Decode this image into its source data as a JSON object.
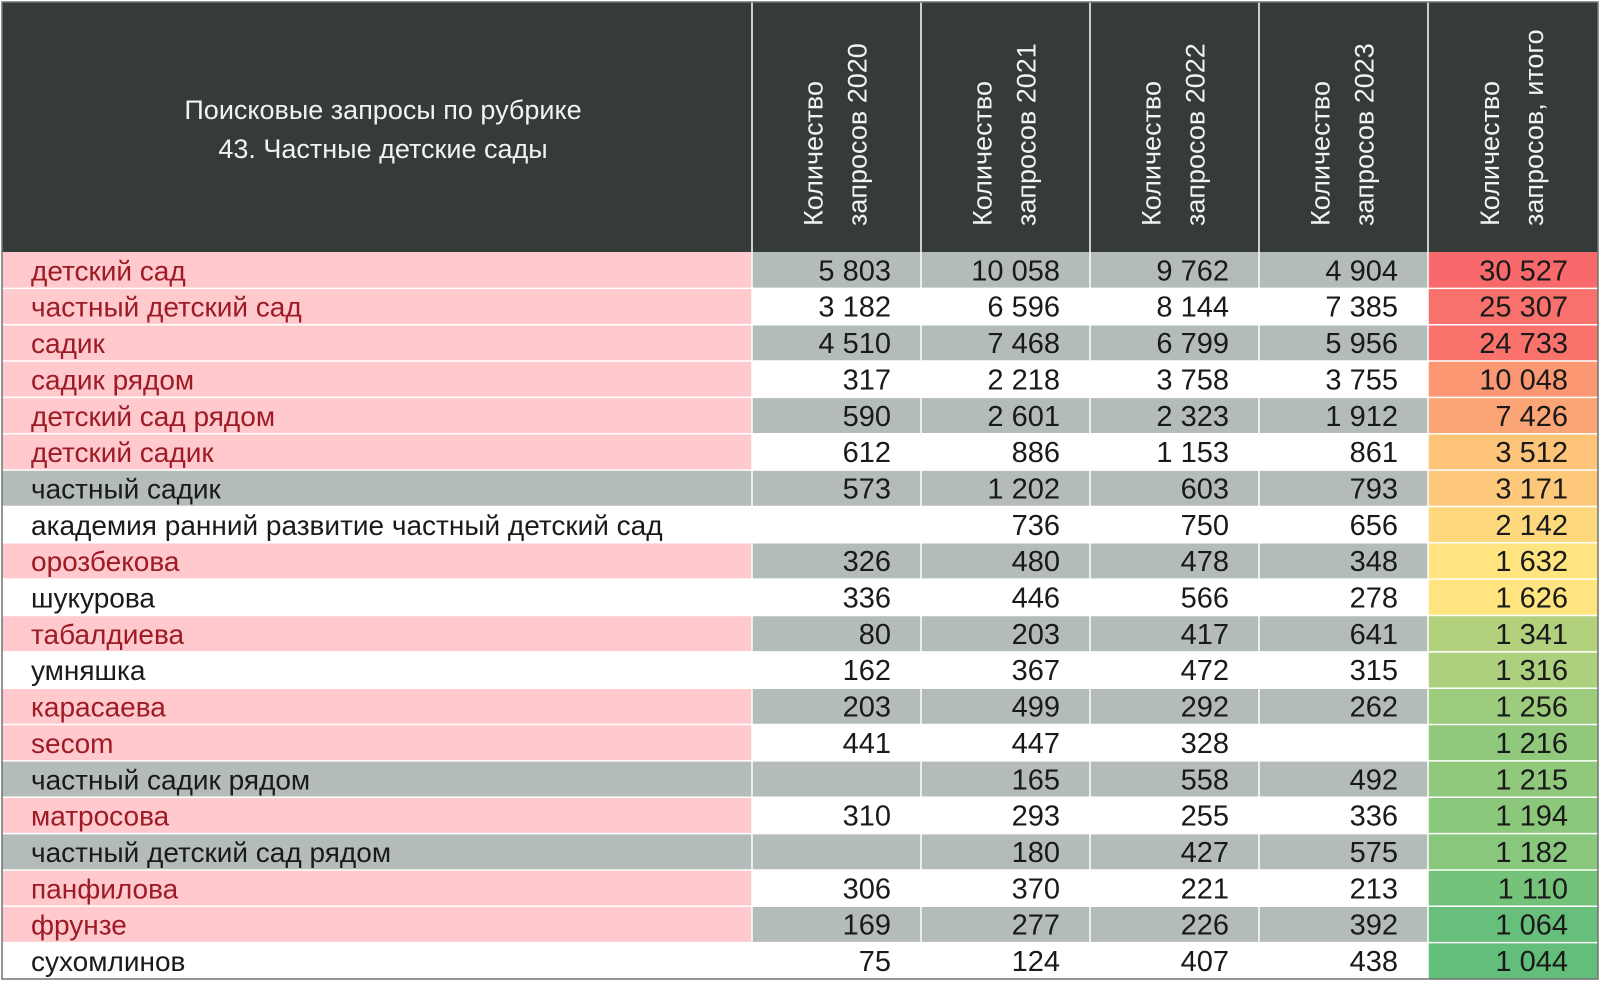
{
  "chart_data": {
    "type": "table",
    "title_lines": [
      "Поисковые запросы по рубрике",
      "43. Частные детские сады"
    ],
    "columns": [
      {
        "lines": [
          "Количество",
          "запросов 2020"
        ]
      },
      {
        "lines": [
          "Количество",
          "запросов 2021"
        ]
      },
      {
        "lines": [
          "Количество",
          "запросов 2022"
        ]
      },
      {
        "lines": [
          "Количество",
          "запросов 2023"
        ]
      },
      {
        "lines": [
          "Количество",
          "запросов, итого"
        ]
      }
    ],
    "rows": [
      {
        "label": "детский сад",
        "highlight": true,
        "values": [
          "5 803",
          "10 058",
          "9 762",
          "4 904",
          "30 527"
        ],
        "total": 30527
      },
      {
        "label": "частный детский сад",
        "highlight": true,
        "values": [
          "3 182",
          "6 596",
          "8 144",
          "7 385",
          "25 307"
        ],
        "total": 25307
      },
      {
        "label": "садик",
        "highlight": true,
        "values": [
          "4 510",
          "7 468",
          "6 799",
          "5 956",
          "24 733"
        ],
        "total": 24733
      },
      {
        "label": "садик рядом",
        "highlight": true,
        "values": [
          "317",
          "2 218",
          "3 758",
          "3 755",
          "10 048"
        ],
        "total": 10048
      },
      {
        "label": "детский сад рядом",
        "highlight": true,
        "values": [
          "590",
          "2 601",
          "2 323",
          "1 912",
          "7 426"
        ],
        "total": 7426
      },
      {
        "label": "детский садик",
        "highlight": true,
        "values": [
          "612",
          "886",
          "1 153",
          "861",
          "3 512"
        ],
        "total": 3512
      },
      {
        "label": "частный садик",
        "highlight": false,
        "values": [
          "573",
          "1 202",
          "603",
          "793",
          "3 171"
        ],
        "total": 3171
      },
      {
        "label": "академия ранний развитие частный детский сад",
        "highlight": false,
        "values": [
          "",
          "736",
          "750",
          "656",
          "2 142"
        ],
        "total": 2142
      },
      {
        "label": "орозбекова",
        "highlight": true,
        "values": [
          "326",
          "480",
          "478",
          "348",
          "1 632"
        ],
        "total": 1632
      },
      {
        "label": "шукурова",
        "highlight": false,
        "values": [
          "336",
          "446",
          "566",
          "278",
          "1 626"
        ],
        "total": 1626
      },
      {
        "label": "табалдиева",
        "highlight": true,
        "values": [
          "80",
          "203",
          "417",
          "641",
          "1 341"
        ],
        "total": 1341
      },
      {
        "label": "умняшка",
        "highlight": false,
        "values": [
          "162",
          "367",
          "472",
          "315",
          "1 316"
        ],
        "total": 1316
      },
      {
        "label": "карасаева",
        "highlight": true,
        "values": [
          "203",
          "499",
          "292",
          "262",
          "1 256"
        ],
        "total": 1256
      },
      {
        "label": "secom",
        "highlight": true,
        "values": [
          "441",
          "447",
          "328",
          "",
          "1 216"
        ],
        "total": 1216
      },
      {
        "label": "частный садик рядом",
        "highlight": false,
        "values": [
          "",
          "165",
          "558",
          "492",
          "1 215"
        ],
        "total": 1215
      },
      {
        "label": "матросова",
        "highlight": true,
        "values": [
          "310",
          "293",
          "255",
          "336",
          "1 194"
        ],
        "total": 1194
      },
      {
        "label": "частный детский сад рядом",
        "highlight": false,
        "values": [
          "",
          "180",
          "427",
          "575",
          "1 182"
        ],
        "total": 1182
      },
      {
        "label": "панфилова",
        "highlight": true,
        "values": [
          "306",
          "370",
          "221",
          "213",
          "1 110"
        ],
        "total": 1110
      },
      {
        "label": "фрунзе",
        "highlight": true,
        "values": [
          "169",
          "277",
          "226",
          "392",
          "1 064"
        ],
        "total": 1064
      },
      {
        "label": "сухомлинов",
        "highlight": false,
        "values": [
          "75",
          "124",
          "407",
          "438",
          "1 044"
        ],
        "total": 1044
      }
    ],
    "colors": {
      "header_bg": "#353b38",
      "header_text": "#f2f2f2",
      "stripe_gray": "#b3bcb8",
      "stripe_white": "#ffffff",
      "highlight_bg": "#ffc9ce",
      "highlight_text": "#9c1b24",
      "normal_text": "#1a1a1a",
      "scale_low": "#63be7b",
      "scale_mid": "#ffe47f",
      "scale_high": "#f8696b"
    }
  }
}
